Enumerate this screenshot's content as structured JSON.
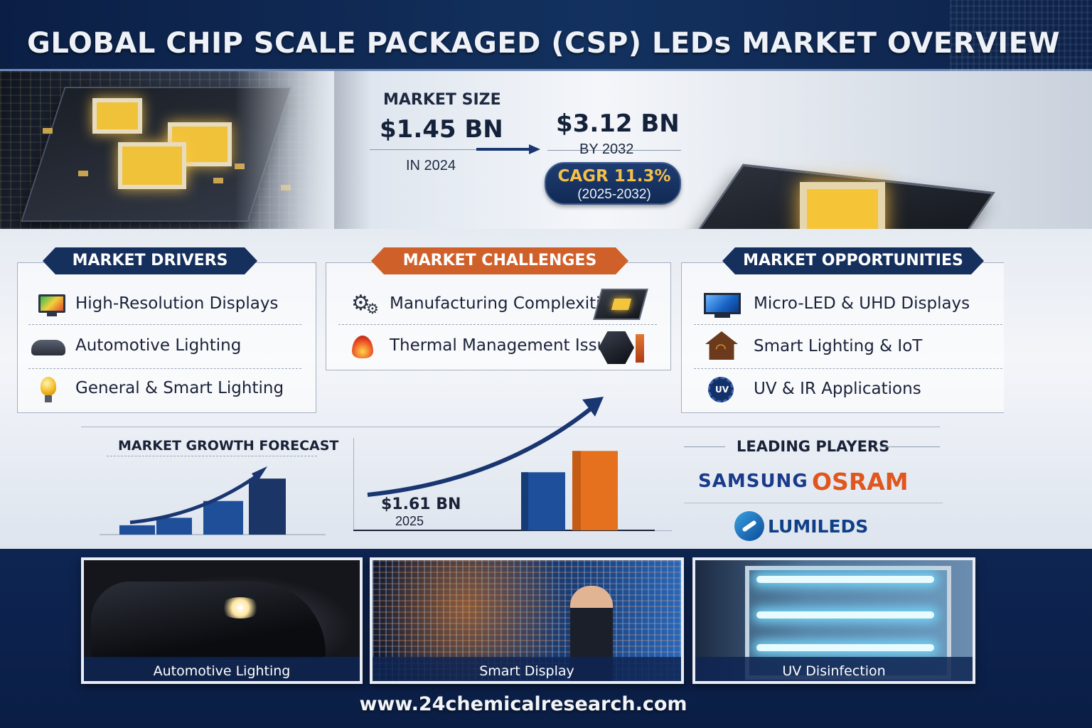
{
  "header": {
    "title": "GLOBAL CHIP SCALE PACKAGED (CSP) LEDs MARKET OVERVIEW"
  },
  "market_size": {
    "label": "MARKET SIZE",
    "value_2024": "$1.45 BN",
    "year_2024": "IN 2024",
    "value_2032": "$3.12 BN",
    "year_2032": "BY 2032",
    "cagr": "CAGR 11.3%",
    "cagr_period": "(2025-2032)"
  },
  "drivers": {
    "title": "MARKET DRIVERS",
    "items": [
      {
        "label": "High-Resolution Displays",
        "icon": "monitor-icon"
      },
      {
        "label": "Automotive Lighting",
        "icon": "car-icon"
      },
      {
        "label": "General & Smart Lighting",
        "icon": "lightbulb-icon"
      }
    ]
  },
  "challenges": {
    "title": "MARKET CHALLENGES",
    "items": [
      {
        "label": "Manufacturing Complexities",
        "icon": "gears-icon"
      },
      {
        "label": "Thermal Management Issues",
        "icon": "flame-icon"
      }
    ]
  },
  "opportunities": {
    "title": "MARKET OPPORTUNITIES",
    "items": [
      {
        "label": "Micro-LED & UHD Displays",
        "icon": "display-icon"
      },
      {
        "label": "Smart Lighting & IoT",
        "icon": "smart-home-icon"
      },
      {
        "label": "UV & IR Applications",
        "icon": "uv-icon"
      }
    ]
  },
  "forecast": {
    "title": "MARKET GROWTH FORECAST",
    "value_2025": "$1.61 BN",
    "year_2025": "2025"
  },
  "players": {
    "title": "LEADING PLAYERS",
    "names": [
      "SAMSUNG",
      "OSRAM",
      "LUMILEDS"
    ]
  },
  "gallery": [
    {
      "caption": "Automotive Lighting"
    },
    {
      "caption": "Smart Display"
    },
    {
      "caption": "UV Disinfection"
    }
  ],
  "footer": {
    "url": "www.24chemicalresearch.com"
  },
  "colors": {
    "navy": "#16305e",
    "orange": "#d0602a",
    "bar_blue": "#1e4f9a",
    "bar_orange": "#e5701e",
    "gold": "#f3c04a"
  },
  "chart_data": [
    {
      "type": "bar",
      "title": "MARKET GROWTH FORECAST",
      "categories": [
        "",
        "",
        "",
        ""
      ],
      "values": [
        1.0,
        1.8,
        3.6,
        6.0
      ],
      "ylim": [
        0,
        7
      ],
      "trend_arrow": true
    },
    {
      "type": "bar",
      "title": "",
      "annotations": [
        "$1.61 BN",
        "2025"
      ],
      "categories": [
        "",
        ""
      ],
      "series": [
        {
          "values": [
            1.61,
            0
          ]
        },
        {
          "values": [
            0,
            2.2
          ]
        }
      ],
      "ylim": [
        0,
        2.6
      ],
      "trend_arrow": true
    }
  ]
}
